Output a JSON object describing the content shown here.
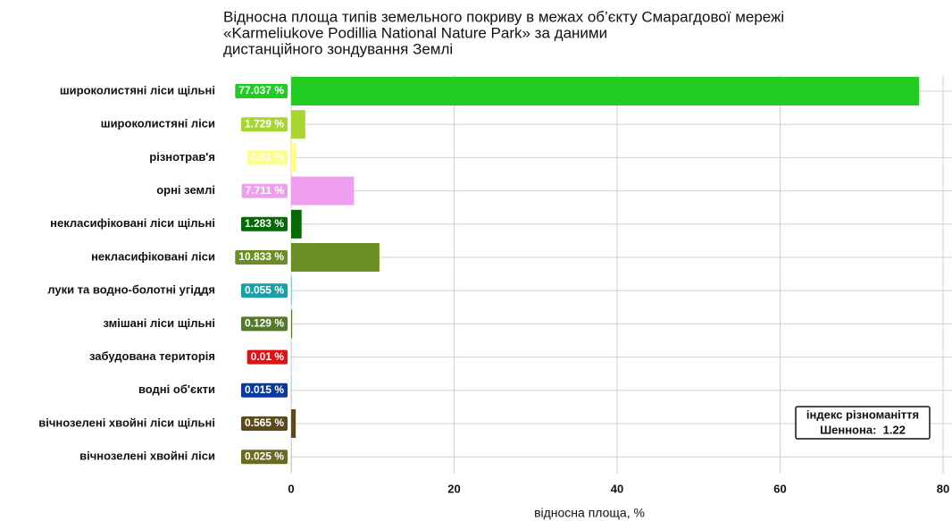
{
  "chart_data": {
    "type": "hbar",
    "title_lines": [
      "Відносна площа типів земельного покриву в межах об’єкту Смарагдової мережі",
      "«Karmeliukove Podillia National Nature Park» за даними",
      "дистанційного зондування Землі"
    ],
    "xlabel": "відносна площа, %",
    "categories": [
      "широколистяні ліси щільні",
      "широколистяні ліси",
      "різнотрав'я",
      "орні землі",
      "некласифіковані ліси щільні",
      "некласифіковані ліси",
      "луки та водно-болотні угіддя",
      "змішані ліси щільні",
      "забудована територія",
      "водні об'єкти",
      "вічнозелені хвойні ліси щільні",
      "вічнозелені хвойні ліси"
    ],
    "values": [
      77.037,
      1.729,
      0.61,
      7.711,
      1.283,
      10.833,
      0.055,
      0.129,
      0.01,
      0.015,
      0.565,
      0.025
    ],
    "value_labels": [
      "77.037 %",
      "1.729 %",
      "0.61 %",
      "7.711 %",
      "1.283 %",
      "10.833 %",
      "0.055 %",
      "0.129 %",
      "0.01 %",
      "0.015 %",
      "0.565 %",
      "0.025 %"
    ],
    "colors": [
      "#22cc22",
      "#a8d630",
      "#ffff88",
      "#eea0ee",
      "#046a04",
      "#6b8e23",
      "#1a9fa6",
      "#567a2c",
      "#e21212",
      "#0b3a9e",
      "#5a4a1e",
      "#6a6a22"
    ],
    "xlim": [
      0,
      80
    ],
    "xticks": [
      0,
      20,
      40,
      60,
      80
    ],
    "grid": true,
    "annotation_lines": [
      "індекс різноманіття",
      "Шеннона:  1.22"
    ]
  }
}
